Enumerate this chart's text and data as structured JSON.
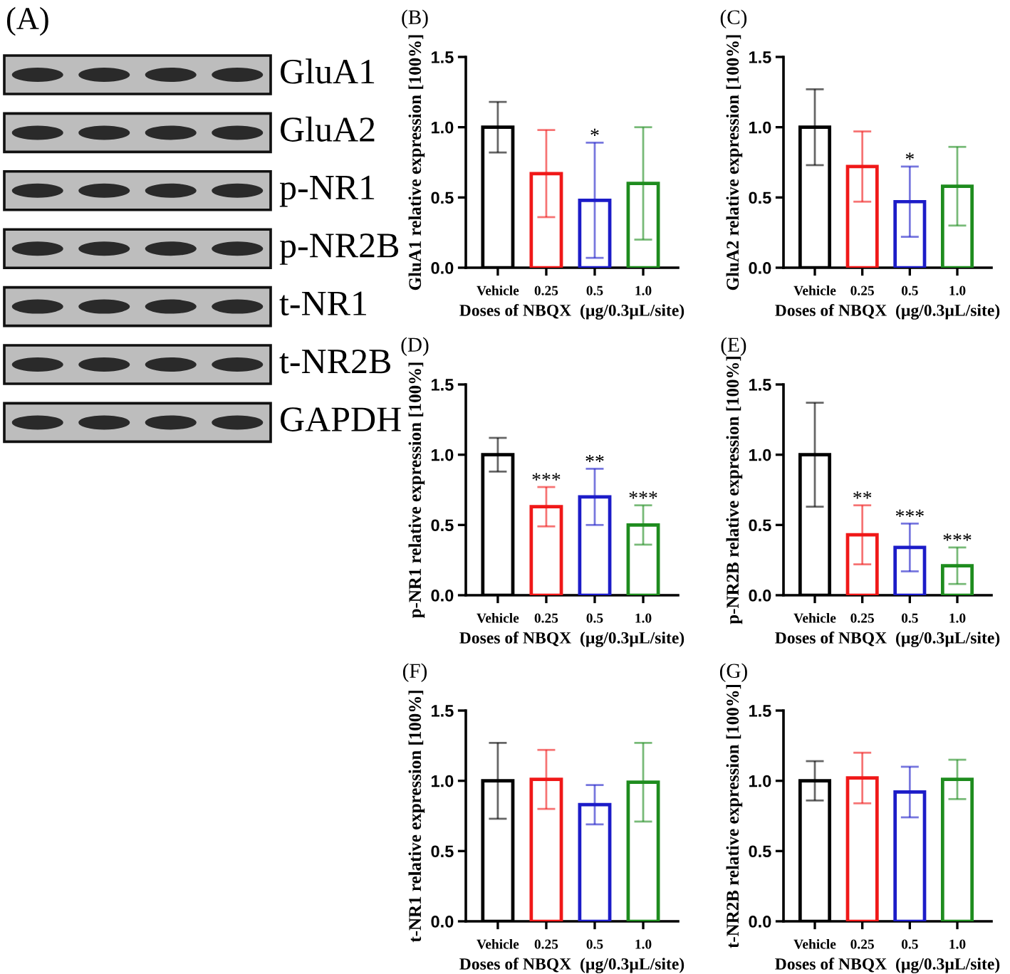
{
  "chart_data": [
    {
      "type": "other",
      "title": "(A)",
      "annotations": [
        "GluA1",
        "GluA2",
        "p-NR1",
        "p-NR2B",
        "t-NR1",
        "t-NR2B",
        "GAPDH"
      ]
    },
    {
      "type": "bar",
      "title": "(B)",
      "xlabel": "Doses of NBQX  (µg/0.3µL/site)",
      "ylabel": "GluA1 relative expression [100%]",
      "categories": [
        "Vehicle",
        "0.25",
        "0.5",
        "1.0"
      ],
      "values": [
        1.0,
        0.67,
        0.48,
        0.6
      ],
      "errors": [
        0.18,
        0.31,
        0.41,
        0.4
      ],
      "colors": [
        "#000000",
        "#f01818",
        "#1c1cc8",
        "#1e8c1e"
      ],
      "ylim": [
        0,
        1.5
      ],
      "yticks": [
        {
          "value": 0,
          "label": "0.0"
        },
        {
          "value": 0.5,
          "label": "0.5"
        },
        {
          "value": 1,
          "label": "1.0"
        },
        {
          "value": 1.5,
          "label": "1.5"
        }
      ],
      "annotations": [
        {
          "text": "*",
          "x": "0.5",
          "y": 0.89
        }
      ]
    },
    {
      "type": "bar",
      "title": "(C)",
      "xlabel": "Doses of NBQX  (µg/0.3µL/site)",
      "ylabel": "GluA2 relative expression [100%]",
      "categories": [
        "Vehicle",
        "0.25",
        "0.5",
        "1.0"
      ],
      "values": [
        1.0,
        0.72,
        0.47,
        0.58
      ],
      "errors": [
        0.27,
        0.25,
        0.25,
        0.28
      ],
      "colors": [
        "#000000",
        "#f01818",
        "#1c1cc8",
        "#1e8c1e"
      ],
      "ylim": [
        0,
        1.5
      ],
      "yticks": [
        {
          "value": 0,
          "label": "0.0"
        },
        {
          "value": 0.5,
          "label": "0.5"
        },
        {
          "value": 1,
          "label": "1.0"
        },
        {
          "value": 1.5,
          "label": "1.5"
        }
      ],
      "annotations": [
        {
          "text": "*",
          "x": "0.5",
          "y": 0.72
        }
      ]
    },
    {
      "type": "bar",
      "title": "(D)",
      "xlabel": "Doses of NBQX  (µg/0.3µL/site)",
      "ylabel": "p-NR1 relative expression [100%]",
      "categories": [
        "Vehicle",
        "0.25",
        "0.5",
        "1.0"
      ],
      "values": [
        1.0,
        0.63,
        0.7,
        0.5
      ],
      "errors": [
        0.12,
        0.14,
        0.2,
        0.14
      ],
      "colors": [
        "#000000",
        "#f01818",
        "#1c1cc8",
        "#1e8c1e"
      ],
      "ylim": [
        0,
        1.5
      ],
      "yticks": [
        {
          "value": 0,
          "label": "0.0"
        },
        {
          "value": 0.5,
          "label": "0.5"
        },
        {
          "value": 1,
          "label": "1.0"
        },
        {
          "value": 1.5,
          "label": "1.5"
        }
      ],
      "annotations": [
        {
          "text": "***",
          "x": "0.25",
          "y": 0.77
        },
        {
          "text": "**",
          "x": "0.5",
          "y": 0.9
        },
        {
          "text": "***",
          "x": "1.0",
          "y": 0.64
        }
      ]
    },
    {
      "type": "bar",
      "title": "(E)",
      "xlabel": "Doses of NBQX  (µg/0.3µL/site)",
      "ylabel": "p-NR2B relative expression [100%]",
      "categories": [
        "Vehicle",
        "0.25",
        "0.5",
        "1.0"
      ],
      "values": [
        1.0,
        0.43,
        0.34,
        0.21
      ],
      "errors": [
        0.37,
        0.21,
        0.17,
        0.13
      ],
      "colors": [
        "#000000",
        "#f01818",
        "#1c1cc8",
        "#1e8c1e"
      ],
      "ylim": [
        0,
        1.5
      ],
      "yticks": [
        {
          "value": 0,
          "label": "0.0"
        },
        {
          "value": 0.5,
          "label": "0.5"
        },
        {
          "value": 1,
          "label": "1.0"
        },
        {
          "value": 1.5,
          "label": "1.5"
        }
      ],
      "annotations": [
        {
          "text": "**",
          "x": "0.25",
          "y": 0.64
        },
        {
          "text": "***",
          "x": "0.5",
          "y": 0.51
        },
        {
          "text": "***",
          "x": "1.0",
          "y": 0.34
        }
      ]
    },
    {
      "type": "bar",
      "title": "(F)",
      "xlabel": "Doses of NBQX  (µg/0.3µL/site)",
      "ylabel": "t-NR1 relative expression [100%]",
      "categories": [
        "Vehicle",
        "0.25",
        "0.5",
        "1.0"
      ],
      "values": [
        1.0,
        1.01,
        0.83,
        0.99
      ],
      "errors": [
        0.27,
        0.21,
        0.14,
        0.28
      ],
      "colors": [
        "#000000",
        "#f01818",
        "#1c1cc8",
        "#1e8c1e"
      ],
      "ylim": [
        0,
        1.5
      ],
      "yticks": [
        {
          "value": 0,
          "label": "0.0"
        },
        {
          "value": 0.5,
          "label": "0.5"
        },
        {
          "value": 1,
          "label": "1.0"
        },
        {
          "value": 1.5,
          "label": "1.5"
        }
      ]
    },
    {
      "type": "bar",
      "title": "(G)",
      "xlabel": "Doses of NBQX  (µg/0.3µL/site)",
      "ylabel": "t-NR2B relative expression [100%]",
      "categories": [
        "Vehicle",
        "0.25",
        "0.5",
        "1.0"
      ],
      "values": [
        1.0,
        1.02,
        0.92,
        1.01
      ],
      "errors": [
        0.14,
        0.18,
        0.18,
        0.14
      ],
      "colors": [
        "#000000",
        "#f01818",
        "#1c1cc8",
        "#1e8c1e"
      ],
      "ylim": [
        0,
        1.5
      ],
      "yticks": [
        {
          "value": 0,
          "label": "0.0"
        },
        {
          "value": 0.5,
          "label": "0.5"
        },
        {
          "value": 1,
          "label": "1.0"
        },
        {
          "value": 1.5,
          "label": "1.5"
        }
      ]
    }
  ]
}
